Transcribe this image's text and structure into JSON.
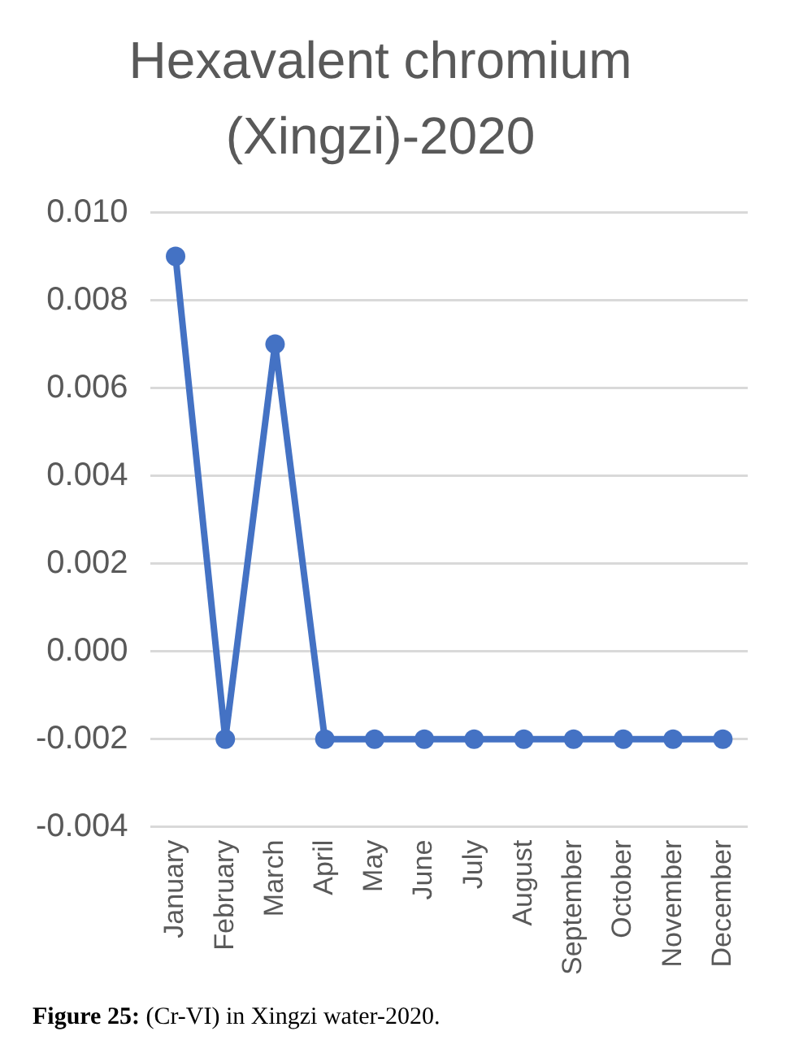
{
  "chart_data": {
    "type": "line",
    "title": "Hexavalent chromium (Xingzi)-2020",
    "categories": [
      "January",
      "February",
      "March",
      "April",
      "May",
      "June",
      "July",
      "August",
      "September",
      "October",
      "November",
      "December"
    ],
    "series": [
      {
        "color": "#4472c4",
        "values": [
          0.009,
          -0.002,
          0.007,
          -0.002,
          -0.002,
          -0.002,
          -0.002,
          -0.002,
          -0.002,
          -0.002,
          -0.002,
          -0.002
        ]
      }
    ],
    "ylim": [
      -0.004,
      0.01
    ],
    "yticks": [
      {
        "value": -0.004,
        "label": "-0.004"
      },
      {
        "value": -0.002,
        "label": "-0.002"
      },
      {
        "value": 0,
        "label": "0.000"
      },
      {
        "value": 0.002,
        "label": "0.002"
      },
      {
        "value": 0.004,
        "label": "0.004"
      },
      {
        "value": 0.006,
        "label": "0.006"
      },
      {
        "value": 0.008,
        "label": "0.008"
      },
      {
        "value": 0.01,
        "label": "0.010"
      }
    ],
    "grid": "y",
    "legend": false,
    "marker": "circle",
    "line_style": "solid",
    "annotations": [
      "Figure 25: (Cr-VI) in Xingzi water-2020."
    ]
  }
}
